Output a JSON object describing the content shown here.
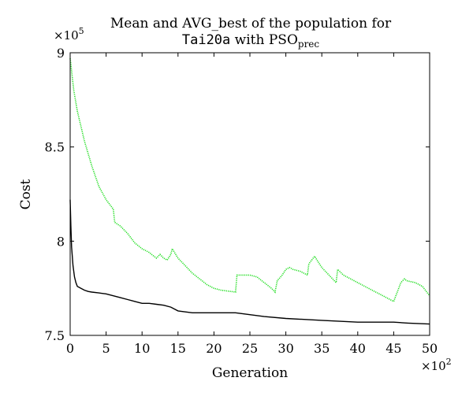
{
  "chart_data": {
    "type": "line",
    "title": {
      "line1": "Mean and AVG_best of the population for",
      "line2_code": "Tai20a",
      "line2_mid": " with PSO",
      "line2_sub": "prec"
    },
    "xlabel": "Generation",
    "ylabel": "Cost",
    "x_multiplier": {
      "base": "×10",
      "exp": "2"
    },
    "y_multiplier": {
      "base": "×10",
      "exp": "5"
    },
    "xlim": [
      0,
      5000
    ],
    "ylim": [
      750000,
      900000
    ],
    "x_ticks": [
      {
        "value": 0,
        "label": "0"
      },
      {
        "value": 500,
        "label": "5"
      },
      {
        "value": 1000,
        "label": "10"
      },
      {
        "value": 1500,
        "label": "15"
      },
      {
        "value": 2000,
        "label": "20"
      },
      {
        "value": 2500,
        "label": "25"
      },
      {
        "value": 3000,
        "label": "30"
      },
      {
        "value": 3500,
        "label": "35"
      },
      {
        "value": 4000,
        "label": "40"
      },
      {
        "value": 4500,
        "label": "45"
      },
      {
        "value": 5000,
        "label": "50"
      }
    ],
    "y_ticks": [
      {
        "value": 750000,
        "label": "7.5"
      },
      {
        "value": 800000,
        "label": "8"
      },
      {
        "value": 850000,
        "label": "8.5"
      },
      {
        "value": 900000,
        "label": "9"
      }
    ],
    "grid": false,
    "series": [
      {
        "color": "#22dd22",
        "style": "dotted",
        "x": [
          0,
          50,
          100,
          200,
          300,
          400,
          500,
          600,
          620,
          700,
          800,
          900,
          1000,
          1100,
          1200,
          1250,
          1300,
          1350,
          1400,
          1420,
          1500,
          1600,
          1700,
          1800,
          1900,
          2000,
          2100,
          2200,
          2300,
          2320,
          2400,
          2500,
          2600,
          2700,
          2800,
          2850,
          2880,
          2950,
          3000,
          3050,
          3100,
          3200,
          3300,
          3320,
          3400,
          3450,
          3500,
          3600,
          3700,
          3720,
          3800,
          3900,
          4000,
          4100,
          4200,
          4300,
          4400,
          4500,
          4600,
          4650,
          4680,
          4800,
          4900,
          5000
        ],
        "y": [
          897000,
          880000,
          869000,
          853000,
          840000,
          829000,
          822000,
          817000,
          810000,
          808000,
          804000,
          799000,
          796000,
          794000,
          791000,
          793000,
          791000,
          790000,
          793000,
          796000,
          791000,
          787000,
          783000,
          780000,
          777000,
          775000,
          774000,
          773500,
          773000,
          782000,
          782000,
          782000,
          781000,
          778000,
          775000,
          773000,
          779000,
          782000,
          785000,
          786000,
          785000,
          784000,
          782000,
          788000,
          792000,
          789000,
          786000,
          782000,
          778000,
          785000,
          782000,
          780000,
          778000,
          776000,
          774000,
          772000,
          770000,
          768000,
          778000,
          780000,
          779000,
          778000,
          776000,
          771000
        ]
      },
      {
        "color": "#000000",
        "style": "solid",
        "x": [
          0,
          10,
          20,
          40,
          60,
          80,
          100,
          150,
          200,
          250,
          300,
          400,
          500,
          600,
          700,
          800,
          900,
          1000,
          1100,
          1200,
          1300,
          1400,
          1500,
          1700,
          2000,
          2300,
          2500,
          2700,
          3000,
          3500,
          4000,
          4500,
          4700,
          5000
        ],
        "y": [
          822000,
          808000,
          797000,
          787000,
          781000,
          778000,
          776000,
          775000,
          774000,
          773300,
          773000,
          772500,
          772000,
          771000,
          770000,
          769000,
          768000,
          767000,
          767000,
          766500,
          766000,
          765000,
          763000,
          762000,
          762000,
          762000,
          761000,
          760000,
          759000,
          758000,
          757000,
          757000,
          756500,
          756000
        ]
      }
    ]
  }
}
